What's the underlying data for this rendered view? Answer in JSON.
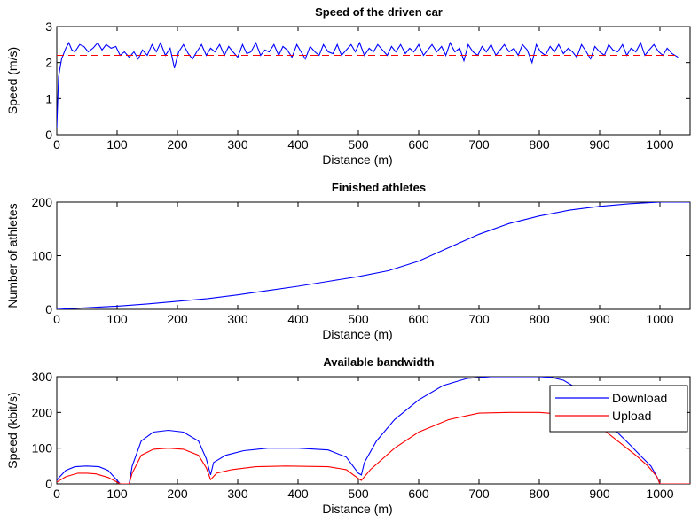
{
  "chart_data": [
    {
      "type": "line",
      "title": "Speed of the driven car",
      "xlabel": "Distance (m)",
      "ylabel": "Speed (m/s)",
      "xlim": [
        0,
        1050
      ],
      "ylim": [
        0,
        3
      ],
      "xticks": [
        "0",
        "100",
        "200",
        "300",
        "400",
        "500",
        "600",
        "700",
        "800",
        "900",
        "1000"
      ],
      "yticks": [
        "0",
        "1",
        "2",
        "3"
      ],
      "series": [
        {
          "color": "#0000ff",
          "style": "solid",
          "x": [
            0,
            3,
            8,
            15,
            20,
            25,
            30,
            38,
            45,
            52,
            60,
            68,
            75,
            82,
            90,
            98,
            105,
            112,
            120,
            128,
            135,
            142,
            150,
            158,
            165,
            172,
            180,
            188,
            195,
            202,
            210,
            218,
            225,
            232,
            240,
            248,
            255,
            262,
            270,
            278,
            285,
            292,
            300,
            308,
            315,
            322,
            330,
            338,
            345,
            352,
            360,
            368,
            375,
            382,
            390,
            398,
            405,
            412,
            420,
            428,
            435,
            442,
            450,
            458,
            465,
            472,
            480,
            488,
            495,
            502,
            510,
            518,
            525,
            532,
            540,
            548,
            555,
            562,
            570,
            578,
            585,
            592,
            600,
            608,
            615,
            622,
            630,
            638,
            645,
            652,
            660,
            668,
            675,
            682,
            690,
            698,
            705,
            712,
            720,
            728,
            735,
            742,
            750,
            758,
            765,
            772,
            780,
            788,
            795,
            802,
            810,
            818,
            825,
            832,
            840,
            848,
            855,
            862,
            870,
            878,
            885,
            892,
            900,
            908,
            915,
            922,
            930,
            938,
            945,
            952,
            960,
            968,
            975,
            982,
            990,
            998,
            1005,
            1012,
            1020,
            1030
          ],
          "y": [
            0.2,
            1.6,
            2.1,
            2.4,
            2.55,
            2.35,
            2.3,
            2.5,
            2.45,
            2.3,
            2.4,
            2.55,
            2.35,
            2.5,
            2.4,
            2.45,
            2.2,
            2.3,
            2.15,
            2.3,
            2.1,
            2.35,
            2.2,
            2.5,
            2.3,
            2.55,
            2.2,
            2.4,
            1.85,
            2.3,
            2.5,
            2.25,
            2.1,
            2.3,
            2.5,
            2.2,
            2.4,
            2.3,
            2.5,
            2.2,
            2.45,
            2.3,
            2.15,
            2.5,
            2.25,
            2.3,
            2.55,
            2.2,
            2.35,
            2.3,
            2.5,
            2.2,
            2.45,
            2.35,
            2.15,
            2.5,
            2.3,
            2.1,
            2.45,
            2.3,
            2.2,
            2.5,
            2.3,
            2.25,
            2.5,
            2.2,
            2.35,
            2.5,
            2.3,
            2.55,
            2.2,
            2.4,
            2.3,
            2.5,
            2.35,
            2.2,
            2.45,
            2.3,
            2.5,
            2.25,
            2.4,
            2.3,
            2.5,
            2.2,
            2.35,
            2.5,
            2.3,
            2.45,
            2.2,
            2.55,
            2.3,
            2.4,
            2.05,
            2.5,
            2.3,
            2.2,
            2.45,
            2.3,
            2.5,
            2.2,
            2.35,
            2.5,
            2.3,
            2.4,
            2.2,
            2.5,
            2.35,
            2.0,
            2.5,
            2.3,
            2.2,
            2.45,
            2.3,
            2.5,
            2.25,
            2.4,
            2.3,
            2.15,
            2.5,
            2.3,
            2.1,
            2.45,
            2.3,
            2.2,
            2.5,
            2.35,
            2.3,
            2.5,
            2.2,
            2.4,
            2.3,
            2.55,
            2.2,
            2.35,
            2.5,
            2.3,
            2.2,
            2.4,
            2.25,
            2.15
          ]
        },
        {
          "color": "#ff0000",
          "style": "dashed",
          "x": [
            0,
            1030
          ],
          "y": [
            2.2,
            2.2
          ]
        }
      ]
    },
    {
      "type": "line",
      "title": "Finished athletes",
      "xlabel": "Distance (m)",
      "ylabel": "Number of athletes",
      "xlim": [
        0,
        1050
      ],
      "ylim": [
        0,
        200
      ],
      "xticks": [
        "0",
        "100",
        "200",
        "300",
        "400",
        "500",
        "600",
        "700",
        "800",
        "900",
        "1000"
      ],
      "yticks": [
        "0",
        "100",
        "200"
      ],
      "series": [
        {
          "color": "#0000ff",
          "style": "solid",
          "x": [
            0,
            50,
            100,
            150,
            200,
            250,
            300,
            350,
            400,
            450,
            500,
            550,
            600,
            650,
            700,
            750,
            800,
            850,
            900,
            950,
            1000,
            1050
          ],
          "y": [
            0,
            3,
            6,
            10,
            15,
            20,
            27,
            35,
            43,
            52,
            61,
            72,
            90,
            115,
            140,
            160,
            174,
            185,
            192,
            197,
            200,
            200
          ]
        }
      ]
    },
    {
      "type": "line",
      "title": "Available bandwidth",
      "xlabel": "Distance (m)",
      "ylabel": "Speed (kbit/s)",
      "xlim": [
        0,
        1050
      ],
      "ylim": [
        0,
        300
      ],
      "xticks": [
        "0",
        "100",
        "200",
        "300",
        "400",
        "500",
        "600",
        "700",
        "800",
        "900",
        "1000"
      ],
      "yticks": [
        "0",
        "100",
        "200",
        "300"
      ],
      "legend": {
        "position": "top-right"
      },
      "series": [
        {
          "name": "Download",
          "color": "#0000ff",
          "x": [
            0,
            5,
            15,
            30,
            50,
            70,
            85,
            100,
            105,
            120,
            125,
            140,
            160,
            185,
            210,
            235,
            248,
            255,
            260,
            280,
            310,
            350,
            400,
            450,
            480,
            500,
            505,
            510,
            530,
            560,
            600,
            640,
            680,
            720,
            760,
            800,
            820,
            840,
            860,
            880,
            900,
            920,
            950,
            970,
            985,
            995,
            1000,
            1050
          ],
          "y": [
            10,
            20,
            38,
            48,
            50,
            48,
            38,
            10,
            0,
            0,
            50,
            120,
            145,
            150,
            145,
            120,
            70,
            25,
            60,
            80,
            93,
            100,
            100,
            95,
            75,
            30,
            25,
            60,
            120,
            180,
            235,
            275,
            295,
            300,
            300,
            300,
            298,
            290,
            270,
            240,
            200,
            160,
            110,
            75,
            50,
            20,
            0,
            0
          ]
        },
        {
          "name": "Upload",
          "color": "#ff0000",
          "x": [
            0,
            15,
            35,
            50,
            65,
            85,
            100,
            105,
            120,
            125,
            140,
            160,
            185,
            210,
            235,
            248,
            255,
            265,
            290,
            330,
            380,
            450,
            480,
            500,
            505,
            520,
            560,
            600,
            650,
            700,
            750,
            800,
            840,
            870,
            900,
            930,
            960,
            980,
            995,
            1000,
            1050
          ],
          "y": [
            5,
            20,
            30,
            30,
            28,
            18,
            5,
            0,
            0,
            30,
            80,
            97,
            100,
            97,
            80,
            45,
            12,
            30,
            40,
            48,
            50,
            48,
            40,
            15,
            10,
            40,
            100,
            145,
            180,
            198,
            200,
            200,
            195,
            180,
            160,
            120,
            80,
            50,
            20,
            0,
            0
          ]
        }
      ]
    }
  ]
}
